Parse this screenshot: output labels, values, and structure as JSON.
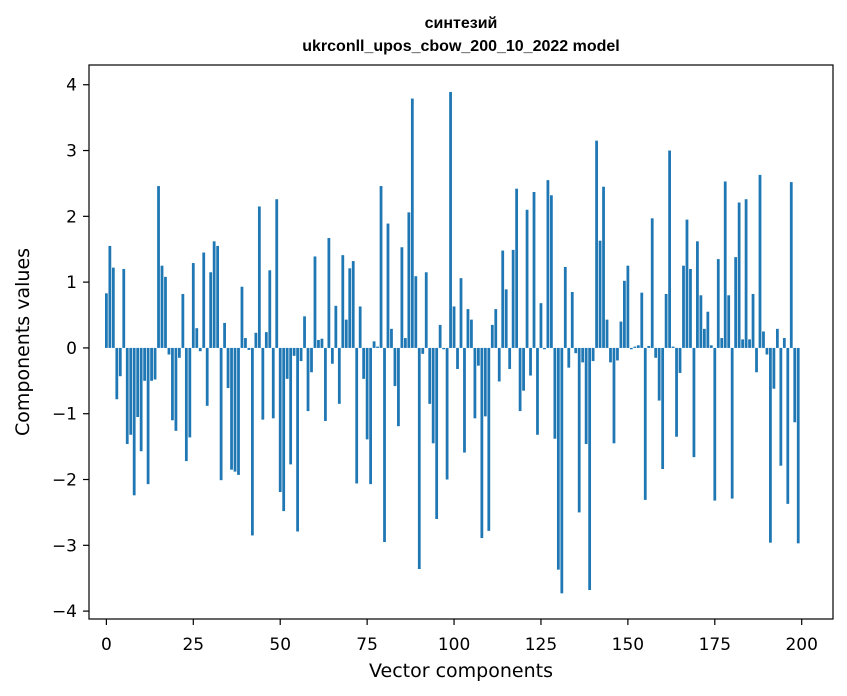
{
  "chart_data": {
    "type": "bar",
    "title": "синтезий",
    "subtitle": "ukrconll_upos_cbow_200_10_2022 model",
    "xlabel": "Vector components",
    "ylabel": "Components values",
    "xlim": [
      -5,
      209
    ],
    "ylim": [
      -4.12,
      4.3
    ],
    "xticks": [
      0,
      25,
      50,
      75,
      100,
      125,
      150,
      175,
      200
    ],
    "yticks": [
      -4,
      -3,
      -2,
      -1,
      0,
      1,
      2,
      3,
      4
    ],
    "xtick_labels": [
      "0",
      "25",
      "50",
      "75",
      "100",
      "125",
      "150",
      "175",
      "200"
    ],
    "ytick_labels": [
      "−4",
      "−3",
      "−2",
      "−1",
      "0",
      "1",
      "2",
      "3",
      "4"
    ],
    "grid": false,
    "bar_color": "#1f77b4",
    "x": [
      0,
      1,
      2,
      3,
      4,
      5,
      6,
      7,
      8,
      9,
      10,
      11,
      12,
      13,
      14,
      15,
      16,
      17,
      18,
      19,
      20,
      21,
      22,
      23,
      24,
      25,
      26,
      27,
      28,
      29,
      30,
      31,
      32,
      33,
      34,
      35,
      36,
      37,
      38,
      39,
      40,
      41,
      42,
      43,
      44,
      45,
      46,
      47,
      48,
      49,
      50,
      51,
      52,
      53,
      54,
      55,
      56,
      57,
      58,
      59,
      60,
      61,
      62,
      63,
      64,
      65,
      66,
      67,
      68,
      69,
      70,
      71,
      72,
      73,
      74,
      75,
      76,
      77,
      78,
      79,
      80,
      81,
      82,
      83,
      84,
      85,
      86,
      87,
      88,
      89,
      90,
      91,
      92,
      93,
      94,
      95,
      96,
      97,
      98,
      99,
      100,
      101,
      102,
      103,
      104,
      105,
      106,
      107,
      108,
      109,
      110,
      111,
      112,
      113,
      114,
      115,
      116,
      117,
      118,
      119,
      120,
      121,
      122,
      123,
      124,
      125,
      126,
      127,
      128,
      129,
      130,
      131,
      132,
      133,
      134,
      135,
      136,
      137,
      138,
      139,
      140,
      141,
      142,
      143,
      144,
      145,
      146,
      147,
      148,
      149,
      150,
      151,
      152,
      153,
      154,
      155,
      156,
      157,
      158,
      159,
      160,
      161,
      162,
      163,
      164,
      165,
      166,
      167,
      168,
      169,
      170,
      171,
      172,
      173,
      174,
      175,
      176,
      177,
      178,
      179,
      180,
      181,
      182,
      183,
      184,
      185,
      186,
      187,
      188,
      189,
      190,
      191,
      192,
      193,
      194,
      195,
      196,
      197,
      198,
      199
    ],
    "values": [
      0.83,
      1.55,
      1.22,
      -0.78,
      -0.43,
      1.2,
      -1.46,
      -1.32,
      -2.24,
      -1.05,
      -1.57,
      -0.5,
      -2.07,
      -0.5,
      -0.48,
      2.46,
      1.25,
      1.08,
      -0.1,
      -1.1,
      -1.26,
      -0.15,
      0.82,
      -1.72,
      -1.36,
      1.29,
      0.3,
      -0.05,
      1.45,
      -0.88,
      1.15,
      1.62,
      1.55,
      -2.01,
      0.38,
      -0.61,
      -1.85,
      -1.88,
      -1.93,
      0.93,
      0.15,
      -0.03,
      -2.85,
      0.23,
      2.15,
      -1.09,
      0.24,
      1.18,
      -1.07,
      2.26,
      -2.19,
      -2.48,
      -0.47,
      -1.77,
      -0.12,
      -2.79,
      -0.2,
      0.48,
      -0.96,
      -0.37,
      1.39,
      0.12,
      0.14,
      -1.11,
      1.67,
      -0.24,
      0.64,
      -0.85,
      1.41,
      0.43,
      1.21,
      1.32,
      -2.06,
      0.63,
      -0.47,
      -1.39,
      -2.07,
      0.1,
      0.02,
      2.46,
      -2.95,
      1.89,
      0.29,
      -0.58,
      -1.19,
      1.53,
      0.15,
      2.06,
      3.79,
      1.09,
      -3.36,
      -0.09,
      1.15,
      -0.85,
      -1.45,
      -2.6,
      0.35,
      -0.02,
      -2.0,
      3.89,
      0.63,
      -0.32,
      1.06,
      -1.59,
      0.59,
      0.43,
      -1.07,
      -0.27,
      -2.89,
      -1.04,
      -2.78,
      0.35,
      0.59,
      -0.51,
      1.48,
      0.89,
      -0.32,
      1.49,
      2.42,
      -0.96,
      -0.65,
      2.1,
      -0.42,
      2.37,
      -1.32,
      0.68,
      -0.02,
      2.55,
      2.32,
      -1.38,
      -3.37,
      -3.73,
      1.23,
      -0.3,
      0.85,
      -0.08,
      -2.5,
      -0.22,
      -1.46,
      -3.68,
      -0.2,
      3.15,
      1.63,
      2.45,
      0.43,
      -0.22,
      -1.45,
      -0.19,
      0.4,
      1.02,
      1.25,
      -0.02,
      0.02,
      0.04,
      0.84,
      -2.31,
      0.03,
      1.97,
      -0.15,
      -0.8,
      -1.84,
      0.82,
      3.0,
      0.02,
      -1.35,
      -0.38,
      1.25,
      1.95,
      1.2,
      -1.66,
      1.62,
      0.8,
      0.29,
      0.55,
      0.04,
      -2.32,
      1.35,
      0.15,
      2.53,
      0.8,
      -2.29,
      1.38,
      2.21,
      0.13,
      2.26,
      0.13,
      0.82,
      -0.37,
      2.63,
      0.25,
      -0.1,
      -2.96,
      -0.62,
      0.29,
      -1.79,
      0.15,
      -2.37,
      2.52,
      -1.13,
      -2.97
    ]
  }
}
